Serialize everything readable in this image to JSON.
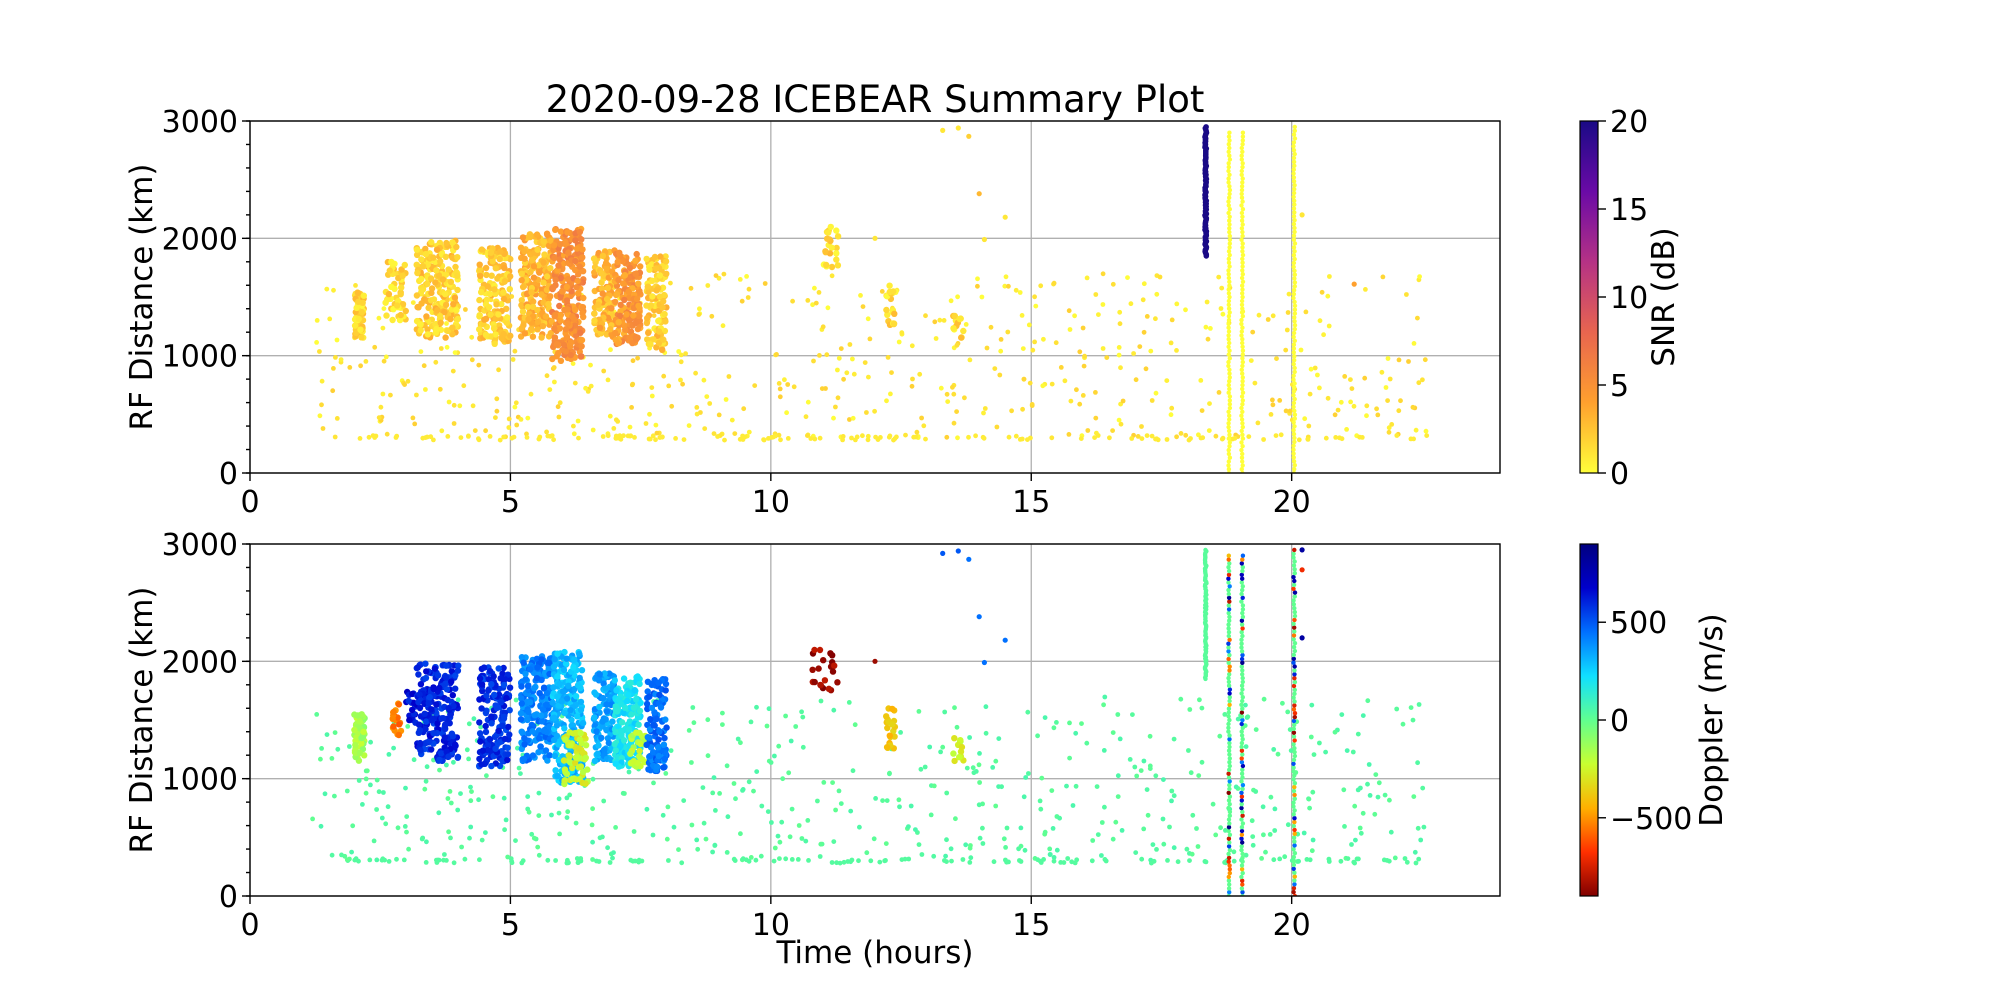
{
  "colors": {
    "snr_cmap": [
      "#ffff3a",
      "#ffa02e",
      "#e8654f",
      "#b53285",
      "#6a0aa6",
      "#1a0a86"
    ],
    "doppler_cmap": [
      "#800000",
      "#ff3000",
      "#ffb000",
      "#c8ff30",
      "#60ff90",
      "#10e0ff",
      "#0070ff",
      "#0000cc",
      "#000080"
    ],
    "grid": "#b0b0b0",
    "background": "#ffffff"
  },
  "chart_data": [
    {
      "type": "scatter",
      "title": "2020-09-28 ICEBEAR Summary Plot",
      "xlabel": "",
      "ylabel": "RF Distance (km)",
      "xlim": [
        0,
        24
      ],
      "ylim": [
        0,
        3000
      ],
      "xticks": [
        "0",
        "5",
        "10",
        "15",
        "20"
      ],
      "yticks": [
        "0",
        "1000",
        "2000",
        "3000"
      ],
      "grid": true,
      "colorbar": {
        "label": "SNR (dB)",
        "range": [
          0,
          20
        ],
        "ticks": [
          "0",
          "5",
          "10",
          "15",
          "20"
        ],
        "colormap": "plasma_r"
      },
      "clusters": [
        {
          "x": [
            2.0,
            2.2
          ],
          "y": [
            1150,
            1550
          ],
          "snr": 1,
          "n": 60
        },
        {
          "x": [
            2.6,
            3.0
          ],
          "y": [
            1300,
            1800
          ],
          "snr": 1,
          "n": 50
        },
        {
          "x": [
            3.2,
            4.0
          ],
          "y": [
            1150,
            1980
          ],
          "snr": 1.5,
          "n": 220
        },
        {
          "x": [
            4.4,
            5.0
          ],
          "y": [
            1100,
            1950
          ],
          "snr": 1.5,
          "n": 160
        },
        {
          "x": [
            5.2,
            5.8
          ],
          "y": [
            1150,
            2050
          ],
          "snr": 2.5,
          "n": 200
        },
        {
          "x": [
            5.8,
            6.4
          ],
          "y": [
            950,
            2080
          ],
          "snr": 4.5,
          "n": 260
        },
        {
          "x": [
            6.6,
            7.0
          ],
          "y": [
            1150,
            1900
          ],
          "snr": 2.5,
          "n": 110
        },
        {
          "x": [
            7.0,
            7.5
          ],
          "y": [
            1100,
            1880
          ],
          "snr": 4,
          "n": 170
        },
        {
          "x": [
            7.6,
            8.0
          ],
          "y": [
            1050,
            1850
          ],
          "snr": 1.5,
          "n": 110
        },
        {
          "x": [
            11.0,
            11.3
          ],
          "y": [
            1750,
            2100
          ],
          "snr": 1,
          "n": 22
        },
        {
          "x": [
            12.2,
            12.4
          ],
          "y": [
            1250,
            1600
          ],
          "snr": 1,
          "n": 20
        },
        {
          "x": [
            13.5,
            13.7
          ],
          "y": [
            1150,
            1350
          ],
          "snr": 1,
          "n": 12
        }
      ],
      "lines": [
        {
          "x": 18.35,
          "y": [
            1850,
            2950
          ],
          "snr": 20
        },
        {
          "x": 18.8,
          "y": [
            0,
            2900
          ],
          "snr": 0
        },
        {
          "x": 19.05,
          "y": [
            0,
            2900
          ],
          "snr": 0
        },
        {
          "x": 20.05,
          "y": [
            0,
            2950
          ],
          "snr": 0
        }
      ],
      "scatter_background": {
        "x": [
          1.2,
          22.6
        ],
        "y": [
          300,
          1700
        ],
        "snr": 1,
        "n": 520
      },
      "scatter_floor": {
        "x": [
          2.0,
          22.6
        ],
        "y": [
          280,
          320
        ],
        "snr": 0.8,
        "n": 130
      },
      "isolated": [
        {
          "x": 13.3,
          "y": 2920,
          "snr": 1
        },
        {
          "x": 13.6,
          "y": 2940,
          "snr": 1
        },
        {
          "x": 13.8,
          "y": 2870,
          "snr": 2
        },
        {
          "x": 14.0,
          "y": 2380,
          "snr": 3
        },
        {
          "x": 14.5,
          "y": 2180,
          "snr": 1
        },
        {
          "x": 14.1,
          "y": 1990,
          "snr": 1
        },
        {
          "x": 12.0,
          "y": 2000,
          "snr": 1
        },
        {
          "x": 21.2,
          "y": 1610,
          "snr": 4
        },
        {
          "x": 20.2,
          "y": 2200,
          "snr": 1
        }
      ]
    },
    {
      "type": "scatter",
      "title": "",
      "xlabel": "Time (hours)",
      "ylabel": "RF Distance (km)",
      "xlim": [
        0,
        24
      ],
      "ylim": [
        0,
        3000
      ],
      "xticks": [
        "0",
        "5",
        "10",
        "15",
        "20"
      ],
      "yticks": [
        "0",
        "1000",
        "2000",
        "3000"
      ],
      "grid": true,
      "colorbar": {
        "label": "Doppler (m/s)",
        "range": [
          -900,
          900
        ],
        "ticks": [
          "−500",
          "0",
          "500"
        ],
        "tick_values": [
          -500,
          0,
          500
        ],
        "colormap": "jet_r"
      },
      "clusters": [
        {
          "x": [
            2.0,
            2.2
          ],
          "y": [
            1150,
            1550
          ],
          "dop": -150,
          "n": 60
        },
        {
          "x": [
            2.7,
            2.9
          ],
          "y": [
            1350,
            1650
          ],
          "dop": -550,
          "n": 20
        },
        {
          "x": [
            3.0,
            3.2
          ],
          "y": [
            1450,
            1750
          ],
          "dop": 650,
          "n": 20
        },
        {
          "x": [
            3.2,
            4.0
          ],
          "y": [
            1150,
            1980
          ],
          "dop": 600,
          "n": 220
        },
        {
          "x": [
            4.4,
            5.0
          ],
          "y": [
            1100,
            1950
          ],
          "dop": 580,
          "n": 160
        },
        {
          "x": [
            5.2,
            5.8
          ],
          "y": [
            1150,
            2050
          ],
          "dop": 420,
          "n": 200
        },
        {
          "x": [
            5.8,
            6.4
          ],
          "y": [
            950,
            2080
          ],
          "dop": 300,
          "n": 240
        },
        {
          "x": [
            6.0,
            6.5
          ],
          "y": [
            950,
            1400
          ],
          "dop": -250,
          "n": 60
        },
        {
          "x": [
            6.6,
            7.0
          ],
          "y": [
            1150,
            1900
          ],
          "dop": 350,
          "n": 110
        },
        {
          "x": [
            7.0,
            7.5
          ],
          "y": [
            1100,
            1880
          ],
          "dop": 200,
          "n": 170
        },
        {
          "x": [
            7.3,
            7.6
          ],
          "y": [
            1100,
            1400
          ],
          "dop": -200,
          "n": 30
        },
        {
          "x": [
            7.6,
            8.0
          ],
          "y": [
            1050,
            1850
          ],
          "dop": 450,
          "n": 110
        },
        {
          "x": [
            10.8,
            11.3
          ],
          "y": [
            1750,
            2100
          ],
          "dop": -850,
          "n": 22
        },
        {
          "x": [
            12.2,
            12.4
          ],
          "y": [
            1250,
            1600
          ],
          "dop": -400,
          "n": 20
        },
        {
          "x": [
            13.5,
            13.7
          ],
          "y": [
            1150,
            1350
          ],
          "dop": -250,
          "n": 12
        }
      ],
      "lines": [
        {
          "x": 18.35,
          "y": [
            1850,
            2950
          ],
          "dop": 20
        },
        {
          "x": 18.8,
          "y": [
            0,
            2900
          ],
          "dop": 0,
          "mixed": true
        },
        {
          "x": 19.05,
          "y": [
            0,
            2900
          ],
          "dop": 0,
          "mixed": true
        },
        {
          "x": 20.05,
          "y": [
            0,
            2950
          ],
          "dop": 0,
          "mixed": true
        }
      ],
      "scatter_background": {
        "x": [
          1.2,
          22.6
        ],
        "y": [
          300,
          1700
        ],
        "dop": 30,
        "n": 520
      },
      "scatter_floor": {
        "x": [
          2.0,
          22.6
        ],
        "y": [
          280,
          320
        ],
        "dop": 30,
        "n": 130
      },
      "isolated": [
        {
          "x": 13.3,
          "y": 2920,
          "dop": 500
        },
        {
          "x": 13.6,
          "y": 2940,
          "dop": 500
        },
        {
          "x": 13.8,
          "y": 2870,
          "dop": 450
        },
        {
          "x": 14.0,
          "y": 2380,
          "dop": 450
        },
        {
          "x": 14.5,
          "y": 2180,
          "dop": 450
        },
        {
          "x": 14.1,
          "y": 1990,
          "dop": 450
        },
        {
          "x": 12.0,
          "y": 2000,
          "dop": -850
        },
        {
          "x": 20.2,
          "y": 2200,
          "dop": 800
        },
        {
          "x": 20.2,
          "y": 2950,
          "dop": 800
        },
        {
          "x": 20.2,
          "y": 2780,
          "dop": -700
        }
      ]
    }
  ]
}
